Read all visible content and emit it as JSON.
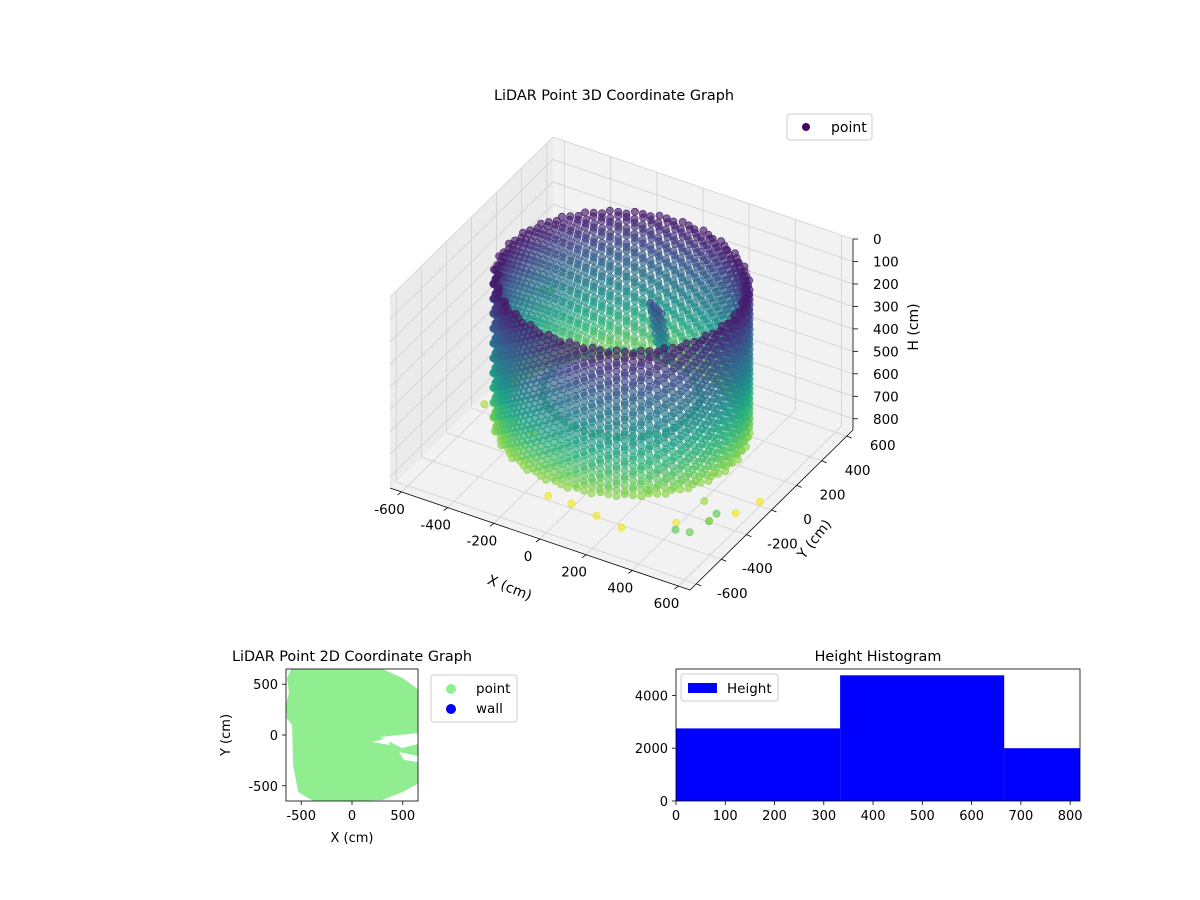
{
  "chart_data": [
    {
      "type": "scatter",
      "projection": "3d",
      "title": "LiDAR Point 3D Coordinate Graph",
      "xlabel": "X (cm)",
      "ylabel": "Y (cm)",
      "zlabel": "H (cm)",
      "xlim": [
        -650,
        650
      ],
      "ylim": [
        -650,
        650
      ],
      "zlim": [
        850,
        0
      ],
      "z_inverted": true,
      "xticks": [
        "-600",
        "-400",
        "-200",
        "0",
        "200",
        "400",
        "600"
      ],
      "yticks": [
        "-600",
        "-400",
        "-200",
        "0",
        "200",
        "400",
        "600"
      ],
      "zticks": [
        "0",
        "100",
        "200",
        "300",
        "400",
        "500",
        "600",
        "700",
        "800"
      ],
      "colormap": "viridis",
      "grid": true,
      "legend": {
        "position": "top-right",
        "entries": [
          {
            "label": "point",
            "color": "#46085c"
          }
        ]
      },
      "series": [
        {
          "name": "point",
          "description_shape": "ring wall",
          "radius_cm": 480,
          "h_range": [
            60,
            700
          ]
        }
      ],
      "scattered_points": [
        {
          "x": -640,
          "y": 560,
          "h": 630
        },
        {
          "x": -640,
          "y": 620,
          "h": 660
        },
        {
          "x": 560,
          "y": -600,
          "h": 640
        },
        {
          "x": 600,
          "y": -560,
          "h": 660
        },
        {
          "x": 640,
          "y": -480,
          "h": 640
        },
        {
          "x": 640,
          "y": -420,
          "h": 640
        },
        {
          "x": -560,
          "y": 100,
          "h": 720
        },
        {
          "x": -500,
          "y": 80,
          "h": 720
        },
        {
          "x": -540,
          "y": -100,
          "h": 740
        },
        {
          "x": -400,
          "y": -120,
          "h": 760
        },
        {
          "x": -300,
          "y": -160,
          "h": 750
        },
        {
          "x": 500,
          "y": -260,
          "h": 720
        },
        {
          "x": 300,
          "y": -350,
          "h": 690
        },
        {
          "x": 0,
          "y": 320,
          "h": 540
        },
        {
          "x": -100,
          "y": -400,
          "h": 830
        },
        {
          "x": 0,
          "y": -400,
          "h": 830
        },
        {
          "x": 120,
          "y": -420,
          "h": 830
        },
        {
          "x": 240,
          "y": -440,
          "h": 830
        },
        {
          "x": 400,
          "y": -300,
          "h": 830
        },
        {
          "x": 500,
          "y": -220,
          "h": 830
        },
        {
          "x": 560,
          "y": -120,
          "h": 830
        },
        {
          "x": 600,
          "y": 0,
          "h": 830
        }
      ]
    },
    {
      "type": "scatter",
      "title": "LiDAR Point 2D Coordinate Graph",
      "xlabel": "X (cm)",
      "ylabel": "Y (cm)",
      "xlim": [
        -650,
        650
      ],
      "ylim": [
        -650,
        650
      ],
      "xticks": [
        "-500",
        "0",
        "500"
      ],
      "yticks": [
        "-500",
        "0",
        "500"
      ],
      "legend": {
        "position": "outside-right",
        "entries": [
          {
            "label": "point",
            "color": "#90ee90"
          },
          {
            "label": "wall",
            "color": "#0000ff"
          }
        ]
      }
    },
    {
      "type": "bar",
      "title": "Height Histogram",
      "xlim": [
        0,
        820
      ],
      "ylim": [
        0,
        5000
      ],
      "xticks": [
        "0",
        "100",
        "200",
        "300",
        "400",
        "500",
        "600",
        "700",
        "800"
      ],
      "yticks": [
        "0",
        "2000",
        "4000"
      ],
      "bins": [
        {
          "from": 0,
          "to": 333,
          "count": 2750
        },
        {
          "from": 333,
          "to": 666,
          "count": 4760
        },
        {
          "from": 666,
          "to": 820,
          "count": 2000
        }
      ],
      "color": "#0000ff",
      "legend": {
        "position": "top-left",
        "entries": [
          {
            "label": "Height",
            "color": "#0000ff"
          }
        ]
      }
    }
  ]
}
